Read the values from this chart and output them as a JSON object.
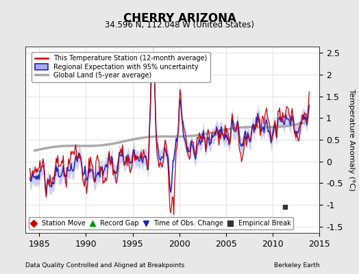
{
  "title": "CHERRY ARIZONA",
  "subtitle": "34.596 N, 112.048 W (United States)",
  "ylabel": "Temperature Anomaly (°C)",
  "xlabel_left": "Data Quality Controlled and Aligned at Breakpoints",
  "xlabel_right": "Berkeley Earth",
  "xlim": [
    1983.5,
    2015.0
  ],
  "ylim": [
    -1.65,
    2.65
  ],
  "yticks": [
    -1.5,
    -1.0,
    -0.5,
    0.0,
    0.5,
    1.0,
    1.5,
    2.0,
    2.5
  ],
  "xticks": [
    1985,
    1990,
    1995,
    2000,
    2005,
    2010,
    2015
  ],
  "background_color": "#e8e8e8",
  "plot_bg_color": "#ffffff",
  "legend_line_items": [
    {
      "label": "This Temperature Station (12-month average)",
      "color": "#cc0000",
      "lw": 1.8
    },
    {
      "label": "Regional Expectation with 95% uncertainty",
      "color": "#2222bb",
      "lw": 1.8
    },
    {
      "label": "Global Land (5-year average)",
      "color": "#aaaaaa",
      "lw": 2.5
    }
  ],
  "marker_items": [
    {
      "label": "Station Move",
      "color": "#cc0000",
      "marker": "D"
    },
    {
      "label": "Record Gap",
      "color": "#009900",
      "marker": "^"
    },
    {
      "label": "Time of Obs. Change",
      "color": "#2222bb",
      "marker": "v"
    },
    {
      "label": "Empirical Break",
      "color": "#333333",
      "marker": "s"
    }
  ],
  "empirical_break_x": 2011.3,
  "empirical_break_y": -1.05,
  "uncertainty_color": "#aaaaee",
  "uncertainty_alpha": 0.55
}
